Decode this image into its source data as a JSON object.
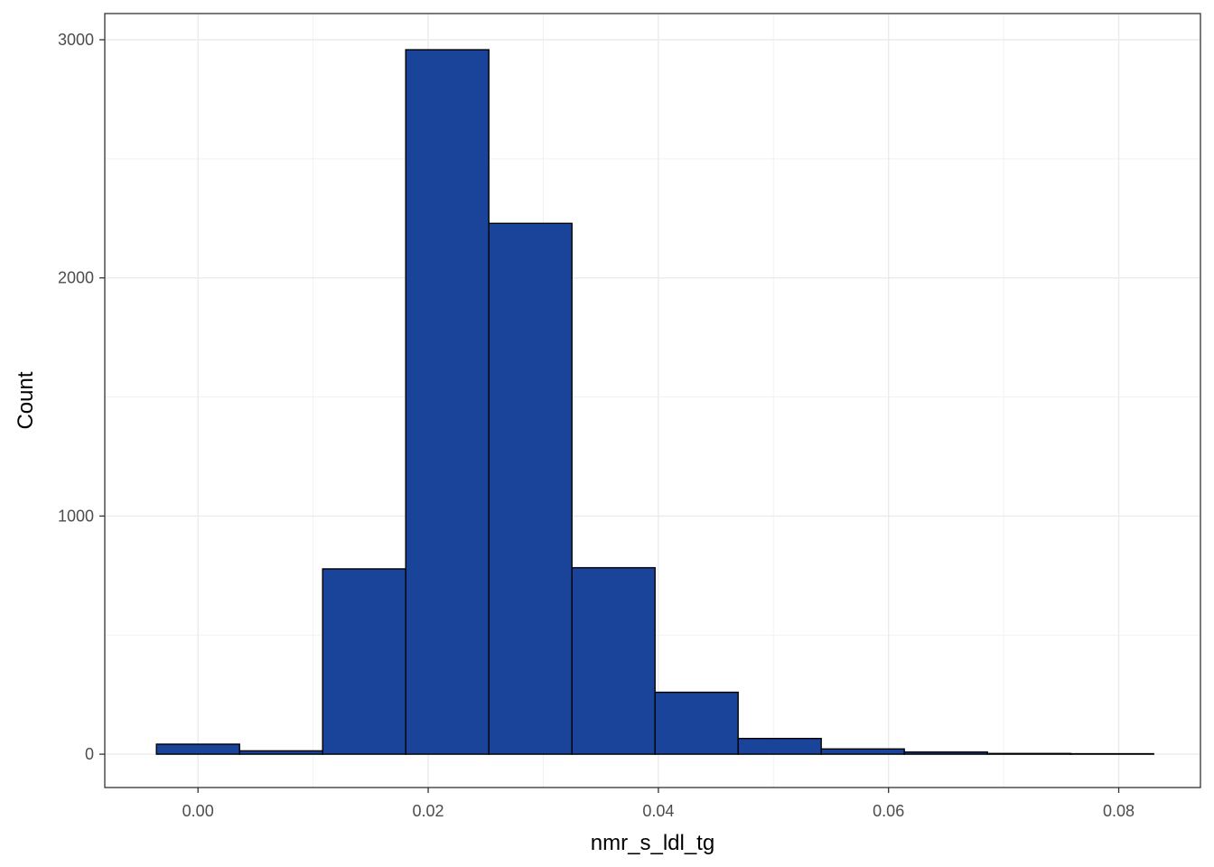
{
  "chart_data": {
    "type": "bar",
    "title": "",
    "xlabel": "nmr_s_ldl_tg",
    "ylabel": "Count",
    "bin_edges": [
      -0.00361,
      0.00361,
      0.01083,
      0.01805,
      0.02527,
      0.03249,
      0.03971,
      0.04693,
      0.05415,
      0.06137,
      0.06859,
      0.07581,
      0.08303
    ],
    "values": [
      42,
      14,
      778,
      2958,
      2229,
      783,
      260,
      66,
      22,
      9,
      3,
      2
    ],
    "xlim": [
      -0.0081,
      0.0871
    ],
    "ylim": [
      -140,
      3110
    ],
    "x_ticks": [
      0.0,
      0.02,
      0.04,
      0.06,
      0.08
    ],
    "x_tick_labels": [
      "0.00",
      "0.02",
      "0.04",
      "0.06",
      "0.08"
    ],
    "y_ticks": [
      0,
      1000,
      2000,
      3000
    ],
    "y_tick_labels": [
      "0",
      "1000",
      "2000",
      "3000"
    ],
    "grid": true,
    "legend": "none",
    "colors": {
      "bar_fill": "#19449A",
      "bar_stroke": "#000000",
      "grid_major": "#EBEBEB",
      "grid_minor": "#F2F2F2",
      "panel_border": "#333333"
    }
  }
}
